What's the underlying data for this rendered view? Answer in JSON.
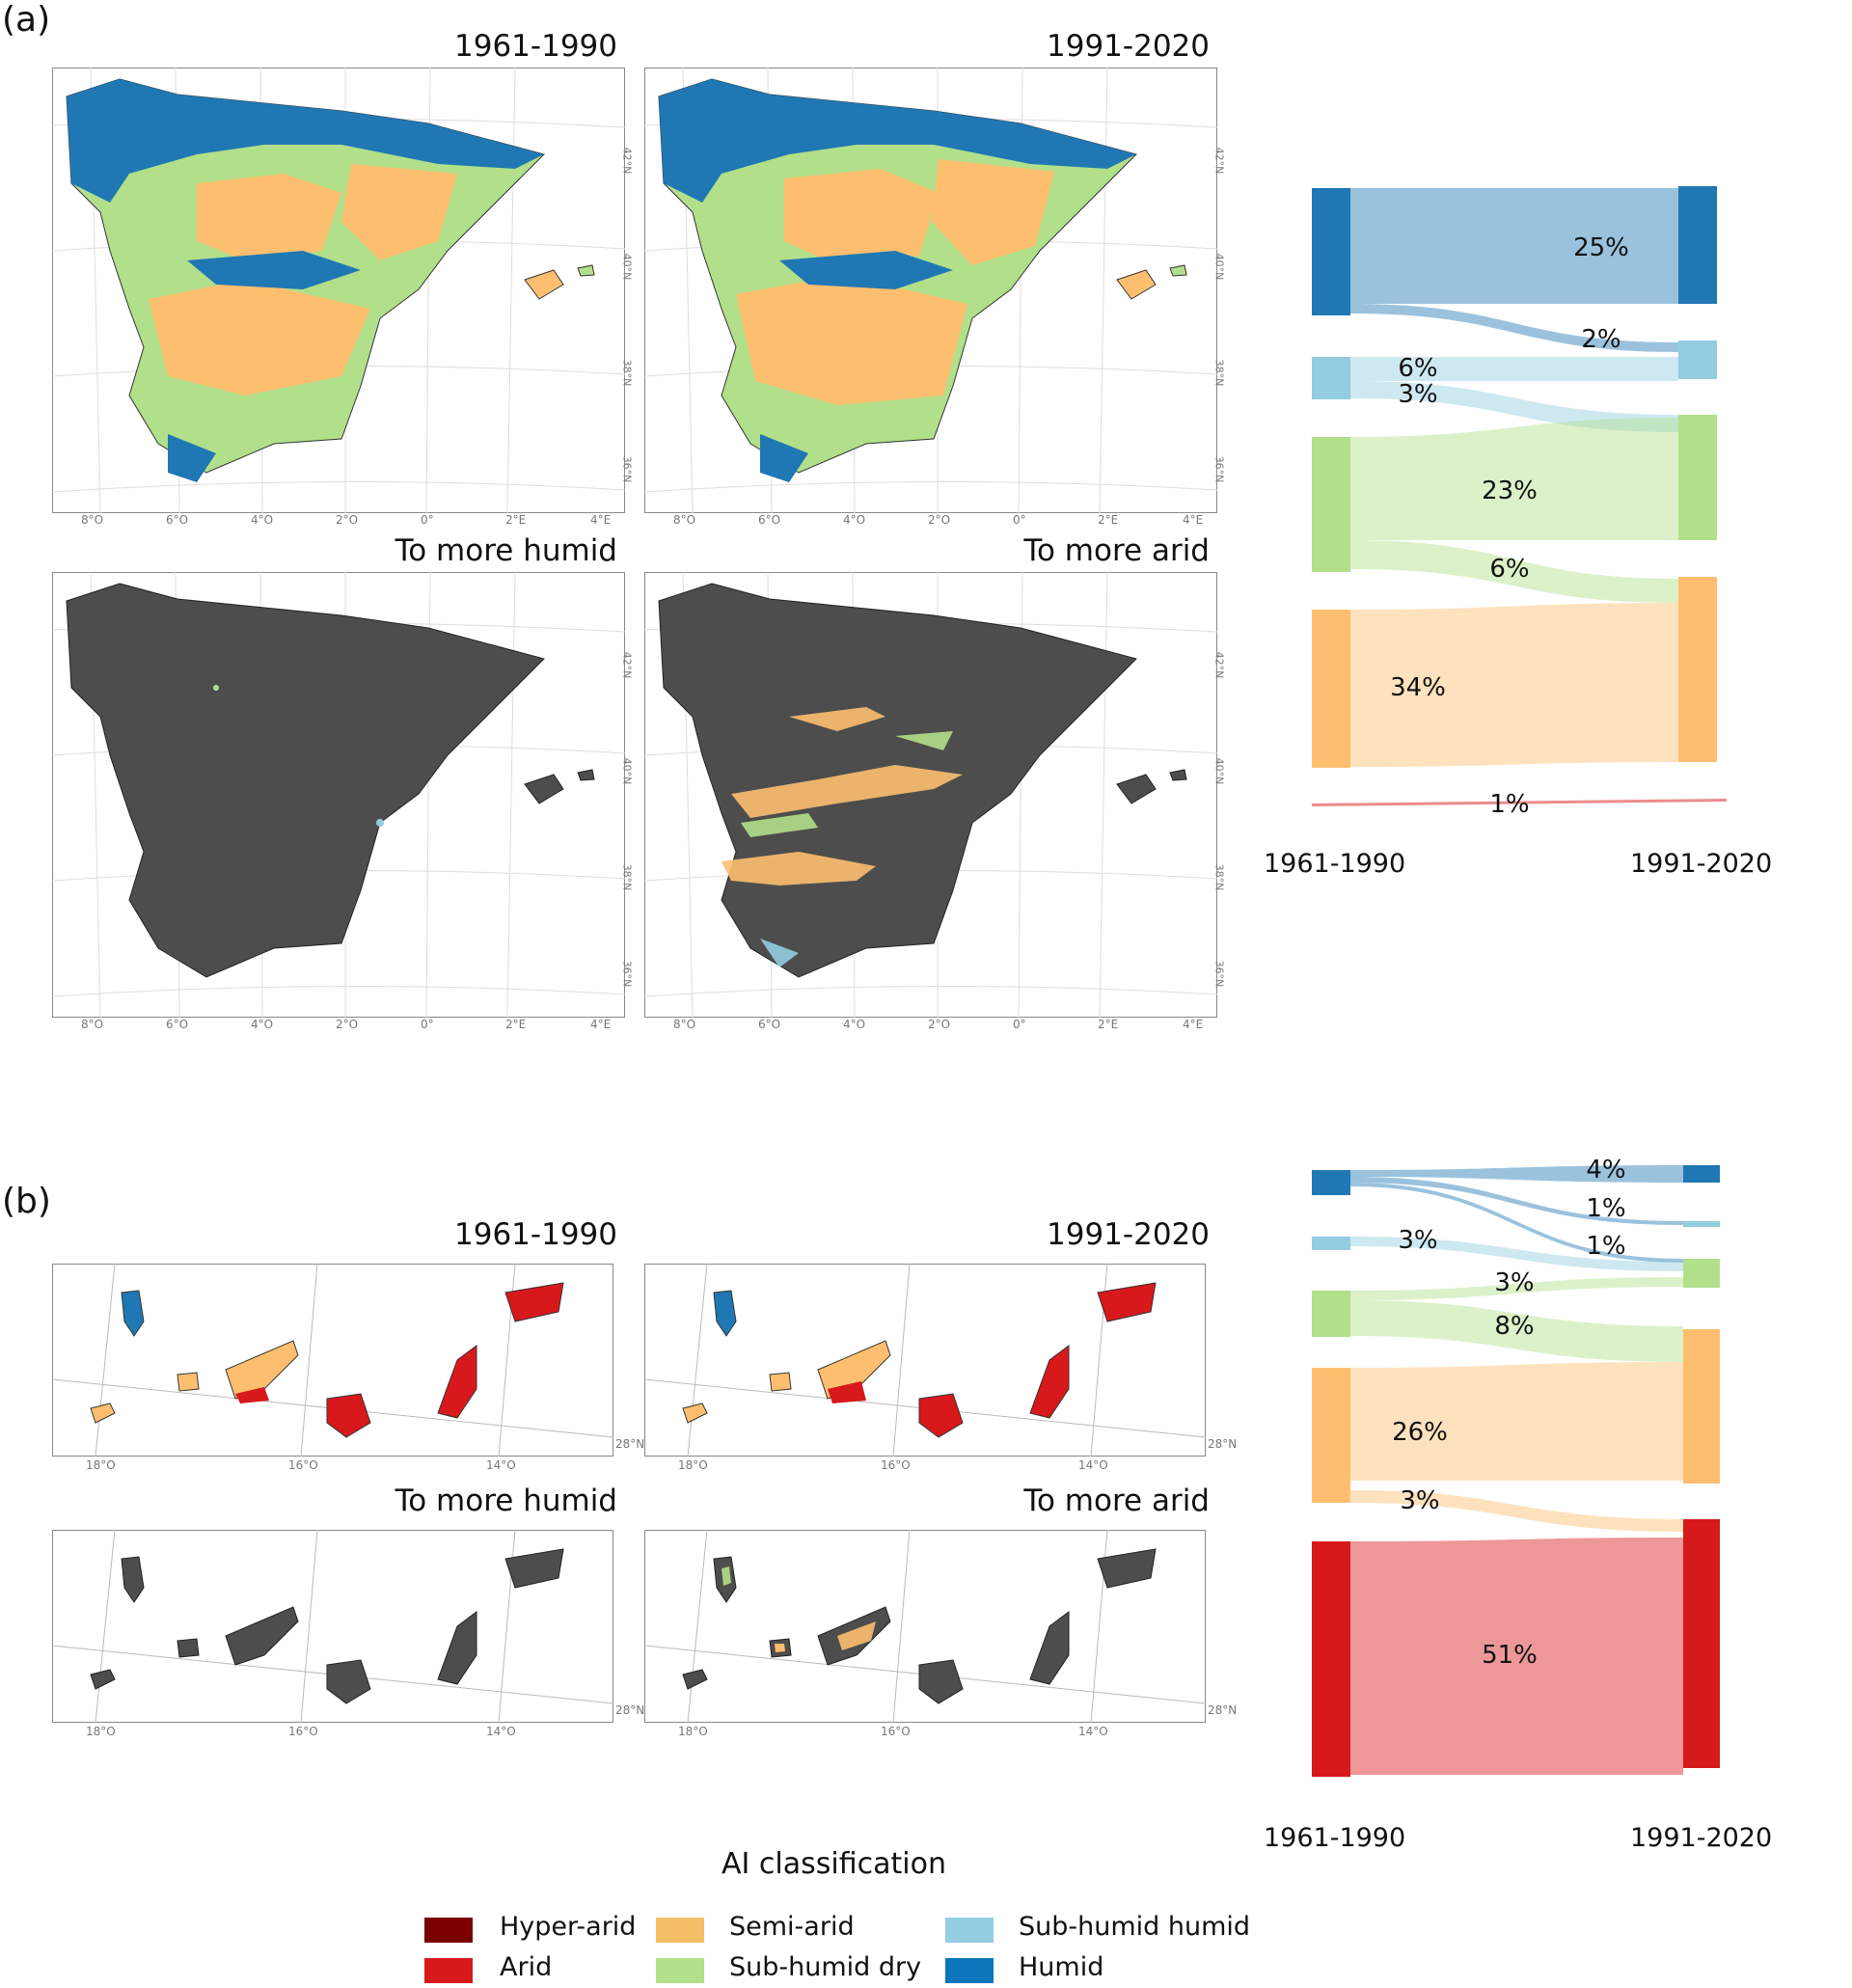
{
  "panel_a": {
    "letter": "(a)",
    "maps": [
      {
        "title": "1961-1990"
      },
      {
        "title": "1991-2020"
      },
      {
        "title": "To more humid"
      },
      {
        "title": "To more arid"
      }
    ],
    "lon_ticks": [
      "8°O",
      "6°O",
      "4°O",
      "2°O",
      "0°",
      "2°E",
      "4°E"
    ],
    "lat_ticks": [
      "42°N",
      "40°N",
      "38°N",
      "36°N"
    ],
    "sankey": {
      "left_label": "1961-1990",
      "right_label": "1991-2020",
      "flow_labels": [
        "25%",
        "2%",
        "6%",
        "3%",
        "23%",
        "6%",
        "34%",
        "1%"
      ]
    }
  },
  "panel_b": {
    "letter": "(b)",
    "maps": [
      {
        "title": "1961-1990"
      },
      {
        "title": "1991-2020"
      },
      {
        "title": "To more humid"
      },
      {
        "title": "To more arid"
      }
    ],
    "lon_ticks": [
      "18°O",
      "16°O",
      "14°O"
    ],
    "lat_ticks": [
      "28°N"
    ],
    "sankey": {
      "left_label": "1961-1990",
      "right_label": "1991-2020",
      "flow_labels": [
        "4%",
        "1%",
        "1%",
        "3%",
        "3%",
        "8%",
        "26%",
        "3%",
        "51%"
      ]
    }
  },
  "legend": {
    "title": "AI classification",
    "items": [
      {
        "label": "Hyper-arid",
        "color": "#7b0000"
      },
      {
        "label": "Arid",
        "color": "#d7191c"
      },
      {
        "label": "Semi-arid",
        "color": "#fdbf6f"
      },
      {
        "label": "Sub-humid dry",
        "color": "#b2df8a"
      },
      {
        "label": "Sub-humid humid",
        "color": "#92cde0"
      },
      {
        "label": "Humid",
        "color": "#1f78b4"
      }
    ]
  }
}
